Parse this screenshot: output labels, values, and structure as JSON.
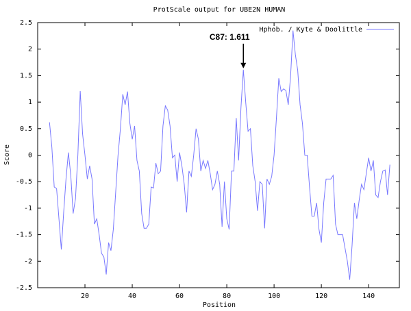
{
  "chart_data": {
    "type": "line",
    "title": "ProtScale output for UBE2N HUMAN",
    "x_label": "Position",
    "y_label": "Score",
    "x": [
      5,
      6,
      7,
      8,
      9,
      10,
      11,
      12,
      13,
      14,
      15,
      16,
      17,
      18,
      19,
      20,
      21,
      22,
      23,
      24,
      25,
      26,
      27,
      28,
      29,
      30,
      31,
      32,
      33,
      34,
      35,
      36,
      37,
      38,
      39,
      40,
      41,
      42,
      43,
      44,
      45,
      46,
      47,
      48,
      49,
      50,
      51,
      52,
      53,
      54,
      55,
      56,
      57,
      58,
      59,
      60,
      61,
      62,
      63,
      64,
      65,
      66,
      67,
      68,
      69,
      70,
      71,
      72,
      73,
      74,
      75,
      76,
      77,
      78,
      79,
      80,
      81,
      82,
      83,
      84,
      85,
      86,
      87,
      88,
      89,
      90,
      91,
      92,
      93,
      94,
      95,
      96,
      97,
      98,
      99,
      100,
      101,
      102,
      103,
      104,
      105,
      106,
      107,
      108,
      109,
      110,
      111,
      112,
      113,
      114,
      115,
      116,
      117,
      118,
      119,
      120,
      121,
      122,
      123,
      124,
      125,
      126,
      127,
      128,
      129,
      130,
      131,
      132,
      133,
      134,
      135,
      136,
      137,
      138,
      139,
      140,
      141,
      142,
      143,
      144,
      145,
      146,
      147,
      148,
      149
    ],
    "series": [
      {
        "name": "Hphob. / Kyte & Doolittle",
        "color": "#7878ff",
        "values": [
          0.62,
          0.15,
          -0.6,
          -0.63,
          -1.2,
          -1.78,
          -1.08,
          -0.44,
          0.05,
          -0.38,
          -1.1,
          -0.82,
          0.0,
          1.21,
          0.4,
          0.0,
          -0.45,
          -0.2,
          -0.45,
          -1.3,
          -1.2,
          -1.5,
          -1.85,
          -1.92,
          -2.25,
          -1.65,
          -1.8,
          -1.4,
          -0.7,
          0.0,
          0.5,
          1.15,
          0.95,
          1.2,
          0.6,
          0.3,
          0.55,
          -0.1,
          -0.3,
          -1.1,
          -1.38,
          -1.38,
          -1.3,
          -0.6,
          -0.62,
          -0.15,
          -0.35,
          -0.3,
          0.55,
          0.93,
          0.85,
          0.55,
          -0.05,
          0.0,
          -0.5,
          0.05,
          -0.2,
          -0.55,
          -1.08,
          -0.3,
          -0.4,
          0.0,
          0.5,
          0.3,
          -0.3,
          -0.1,
          -0.25,
          -0.1,
          -0.35,
          -0.65,
          -0.55,
          -0.3,
          -0.55,
          -1.35,
          -0.5,
          -1.2,
          -1.4,
          -0.3,
          -0.3,
          0.7,
          -0.1,
          0.9,
          1.611,
          1.0,
          0.45,
          0.5,
          -0.2,
          -0.5,
          -1.05,
          -0.5,
          -0.55,
          -1.38,
          -0.45,
          -0.55,
          -0.4,
          0.0,
          0.7,
          1.45,
          1.2,
          1.25,
          1.22,
          0.95,
          1.5,
          2.35,
          1.9,
          1.6,
          0.95,
          0.6,
          0.0,
          0.0,
          -0.6,
          -1.15,
          -1.15,
          -0.9,
          -1.4,
          -1.65,
          -0.9,
          -0.45,
          -0.45,
          -0.45,
          -0.38,
          -1.3,
          -1.5,
          -1.5,
          -1.5,
          -1.75,
          -2.0,
          -2.35,
          -1.7,
          -0.9,
          -1.2,
          -0.85,
          -0.55,
          -0.65,
          -0.35,
          -0.05,
          -0.3,
          -0.1,
          -0.75,
          -0.8,
          -0.5,
          -0.3,
          -0.28,
          -0.75,
          -0.18
        ]
      }
    ],
    "xlim": [
      0,
      153
    ],
    "ylim": [
      -2.5,
      2.5
    ],
    "xticks": [
      20,
      40,
      60,
      80,
      100,
      120,
      140
    ],
    "yticks": [
      -2.5,
      -2,
      -1.5,
      -1,
      -0.5,
      0,
      0.5,
      1,
      1.5,
      2,
      2.5
    ],
    "grid": false,
    "legend": "top-right",
    "annotation": {
      "text": "C87: 1.611",
      "x": 87,
      "y": 1.611
    }
  }
}
